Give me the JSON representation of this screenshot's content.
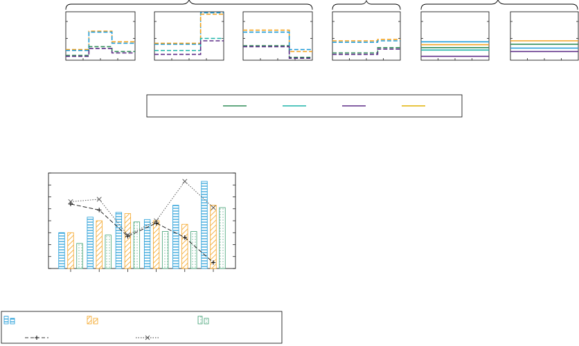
{
  "colors": {
    "blue": "#1f9bd7",
    "orange": "#f4a21e",
    "green": "#2e8b57",
    "teal": "#1bb3a8",
    "purple": "#5b2a86",
    "gold": "#e0b000",
    "frame": "#000000",
    "bar_green": "#3c9e70"
  },
  "icons": [
    "diagonal-hatch-pattern",
    "horizontal-stripe-pattern",
    "dot-pattern"
  ],
  "top_legend": {
    "entries": [
      {
        "name": "",
        "color": "#2e8b57"
      },
      {
        "name": "",
        "color": "#1bb3a8"
      },
      {
        "name": "",
        "color": "#5b2a86"
      },
      {
        "name": "",
        "color": "#e0b000"
      }
    ]
  },
  "bottom_legend": {
    "entries": [
      {
        "name": "",
        "style": "blue-stripes"
      },
      {
        "name": "",
        "style": "orange-hatch"
      },
      {
        "name": "",
        "style": "green-dots"
      },
      {
        "name": "",
        "style": "dash-plus-line"
      },
      {
        "name": "",
        "style": "dotted-x-line"
      }
    ]
  },
  "chart_data": [
    {
      "type": "line",
      "title": "",
      "xlabel": "",
      "ylabel": "",
      "grid": false,
      "step": true,
      "x": [
        0,
        1,
        2,
        3
      ],
      "ylim": [
        0,
        10
      ],
      "series": [
        {
          "color": "#f4a21e",
          "style": "dashed",
          "values": [
            2.2,
            6.0,
            3.8,
            3.8
          ]
        },
        {
          "color": "#1f9bd7",
          "style": "dashed",
          "values": [
            2.0,
            5.8,
            3.5,
            3.5
          ]
        },
        {
          "color": "#2e8b57",
          "style": "dashed",
          "values": [
            1.0,
            2.8,
            1.8,
            1.8
          ]
        },
        {
          "color": "#5b2a86",
          "style": "dashed",
          "values": [
            0.8,
            2.4,
            1.5,
            1.5
          ]
        }
      ]
    },
    {
      "type": "line",
      "title": "",
      "xlabel": "",
      "ylabel": "",
      "grid": false,
      "step": true,
      "x": [
        0,
        1,
        2,
        3
      ],
      "ylim": [
        0,
        10
      ],
      "series": [
        {
          "color": "#1f9bd7",
          "style": "dashed",
          "values": [
            3.3,
            3.3,
            9.8,
            9.8
          ]
        },
        {
          "color": "#f4a21e",
          "style": "dashed",
          "values": [
            3.5,
            3.5,
            9.5,
            9.5
          ]
        },
        {
          "color": "#1bb3a8",
          "style": "dashed",
          "values": [
            2.0,
            2.0,
            4.5,
            4.5
          ]
        },
        {
          "color": "#5b2a86",
          "style": "dashed",
          "values": [
            1.2,
            1.2,
            4.0,
            4.0
          ]
        }
      ]
    },
    {
      "type": "line",
      "title": "",
      "xlabel": "",
      "ylabel": "",
      "grid": false,
      "step": true,
      "x": [
        0,
        1,
        2,
        3
      ],
      "ylim": [
        0,
        10
      ],
      "series": [
        {
          "color": "#f4a21e",
          "style": "dashed",
          "values": [
            6.2,
            6.2,
            1.8,
            1.8
          ]
        },
        {
          "color": "#1f9bd7",
          "style": "dashed",
          "values": [
            5.8,
            5.8,
            2.2,
            2.2
          ]
        },
        {
          "color": "#2e8b57",
          "style": "dashed",
          "values": [
            3.0,
            3.0,
            0.6,
            0.6
          ]
        },
        {
          "color": "#5b2a86",
          "style": "dashed",
          "values": [
            2.8,
            2.8,
            0.4,
            0.4
          ]
        }
      ]
    },
    {
      "type": "line",
      "title": "",
      "xlabel": "",
      "ylabel": "",
      "grid": false,
      "step": true,
      "x": [
        0,
        1,
        2,
        3
      ],
      "ylim": [
        0,
        10
      ],
      "series": [
        {
          "color": "#f4a21e",
          "style": "dashed",
          "values": [
            4.0,
            4.0,
            4.3,
            4.3
          ]
        },
        {
          "color": "#1f9bd7",
          "style": "dashed",
          "values": [
            3.7,
            3.7,
            4.0,
            4.0
          ]
        },
        {
          "color": "#2e8b57",
          "style": "dashed",
          "values": [
            1.5,
            1.5,
            2.6,
            2.6
          ]
        },
        {
          "color": "#5b2a86",
          "style": "dashed",
          "values": [
            1.2,
            1.2,
            2.3,
            2.3
          ]
        }
      ]
    },
    {
      "type": "line",
      "title": "",
      "xlabel": "",
      "ylabel": "",
      "grid": false,
      "step": false,
      "x": [
        0,
        3
      ],
      "ylim": [
        0,
        10
      ],
      "series": [
        {
          "color": "#1f9bd7",
          "style": "solid",
          "values": [
            3.8,
            3.8
          ]
        },
        {
          "color": "#f4a21e",
          "style": "solid",
          "values": [
            3.2,
            3.2
          ]
        },
        {
          "color": "#2e8b57",
          "style": "solid",
          "values": [
            2.6,
            2.6
          ]
        },
        {
          "color": "#1bb3a8",
          "style": "solid",
          "values": [
            2.1,
            2.1
          ]
        },
        {
          "color": "#5b2a86",
          "style": "solid",
          "values": [
            0.8,
            0.8
          ]
        }
      ]
    },
    {
      "type": "line",
      "title": "",
      "xlabel": "",
      "ylabel": "",
      "grid": false,
      "step": false,
      "x": [
        0,
        3
      ],
      "ylim": [
        0,
        10
      ],
      "series": [
        {
          "color": "#f4a21e",
          "style": "solid",
          "values": [
            4.0,
            4.0
          ]
        },
        {
          "color": "#2e8b57",
          "style": "solid",
          "values": [
            3.3,
            3.3
          ]
        },
        {
          "color": "#1f9bd7",
          "style": "solid",
          "values": [
            2.5,
            2.5
          ]
        },
        {
          "color": "#5b2a86",
          "style": "solid",
          "values": [
            1.8,
            1.8
          ]
        }
      ]
    },
    {
      "type": "bar",
      "title": "",
      "xlabel": "",
      "ylabel": "",
      "grid": false,
      "categories": [
        "",
        "",
        "",
        "",
        "",
        ""
      ],
      "ylim": [
        0,
        8
      ],
      "series": [
        {
          "style": "blue-stripes",
          "values": [
            3.0,
            4.3,
            4.7,
            4.1,
            5.3,
            7.3
          ]
        },
        {
          "style": "orange-hatch",
          "values": [
            3.0,
            4.0,
            4.6,
            4.0,
            3.7,
            5.3
          ]
        },
        {
          "style": "green-dots",
          "values": [
            2.1,
            2.8,
            3.9,
            3.1,
            3.1,
            5.1
          ]
        }
      ],
      "lines": [
        {
          "style": "dash-plus",
          "values": [
            5.4,
            4.9,
            2.7,
            3.8,
            2.6,
            0.5
          ]
        },
        {
          "style": "dotted-x",
          "values": [
            5.6,
            5.8,
            2.8,
            4.0,
            7.3,
            5.1
          ]
        }
      ]
    }
  ]
}
